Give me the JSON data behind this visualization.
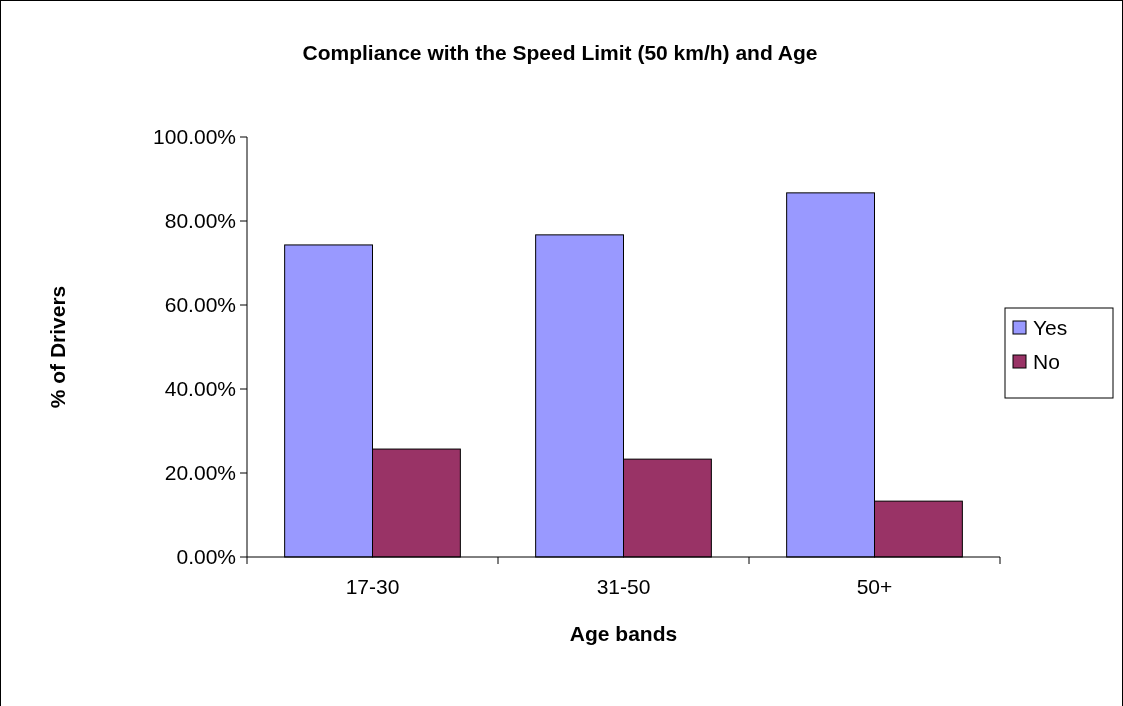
{
  "chart_data": {
    "type": "bar",
    "title": "Compliance with the Speed Limit (50 km/h) and Age",
    "xlabel": "Age bands",
    "ylabel": "% of Drivers",
    "categories": [
      "17-30",
      "31-50",
      "50+"
    ],
    "series": [
      {
        "name": "Yes",
        "color": "#9999ff",
        "values": [
          74.3,
          76.7,
          86.7
        ]
      },
      {
        "name": "No",
        "color": "#993366",
        "values": [
          25.7,
          23.3,
          13.3
        ]
      }
    ],
    "ylim": [
      0,
      100
    ],
    "yticks": [
      {
        "value": 0,
        "label": "0.00%"
      },
      {
        "value": 20,
        "label": "20.00%"
      },
      {
        "value": 40,
        "label": "40.00%"
      },
      {
        "value": 60,
        "label": "60.00%"
      },
      {
        "value": 80,
        "label": "80.00%"
      },
      {
        "value": 100,
        "label": "100.00%"
      }
    ],
    "grid": false,
    "legend": "right"
  }
}
